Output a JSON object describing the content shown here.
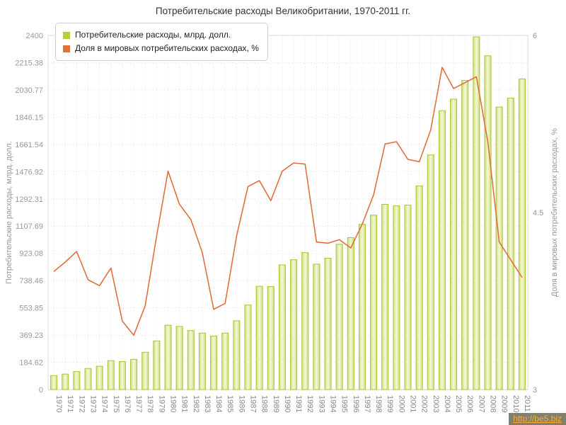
{
  "title": "Потребительские расходы Великобритании, 1970-2011 гг.",
  "watermark": "http://be5.biz",
  "colors": {
    "bar_stroke": "#a9c437",
    "bar_edge": "#cfe078",
    "bar_center": "#f3f8da",
    "bar_legend": "#b4d235",
    "line": "#e0713c",
    "grid": "#e2e2e2",
    "plot_border": "#dddddd",
    "axis_line": "#cccccc",
    "axis_text": "#999999",
    "category_text": "#888888"
  },
  "chart_data": {
    "type": "bar",
    "note": "combo chart: bars on left axis + line on right axis",
    "grid": true,
    "legend_position": "top-left",
    "categories": [
      "1970",
      "1971",
      "1972",
      "1973",
      "1974",
      "1975",
      "1976",
      "1977",
      "1978",
      "1979",
      "1980",
      "1981",
      "1982",
      "1983",
      "1984",
      "1985",
      "1986",
      "1987",
      "1988",
      "1989",
      "1990",
      "1991",
      "1992",
      "1993",
      "1994",
      "1995",
      "1996",
      "1997",
      "1998",
      "1999",
      "2000",
      "2001",
      "2002",
      "2003",
      "2004",
      "2005",
      "2006",
      "2007",
      "2008",
      "2009",
      "2010",
      "2011"
    ],
    "series": [
      {
        "name": "Потребительские расходы, млрд. долл.",
        "type": "bar",
        "axis": "left",
        "values": [
          95,
          105,
          122,
          143,
          158,
          196,
          190,
          205,
          253,
          330,
          436,
          428,
          400,
          383,
          362,
          383,
          466,
          573,
          700,
          698,
          845,
          880,
          928,
          850,
          890,
          985,
          1030,
          1120,
          1182,
          1255,
          1245,
          1250,
          1380,
          1590,
          1890,
          1968,
          2095,
          2390,
          2262,
          1915,
          1975,
          2105
        ]
      },
      {
        "name": "Доля в мировых потребительских расходах, %",
        "type": "line",
        "axis": "right",
        "values": [
          4.0,
          4.08,
          4.17,
          3.93,
          3.88,
          4.03,
          3.58,
          3.46,
          3.71,
          4.3,
          4.85,
          4.57,
          4.44,
          4.16,
          3.68,
          3.73,
          4.3,
          4.72,
          4.77,
          4.6,
          4.85,
          4.92,
          4.91,
          4.25,
          4.24,
          4.27,
          4.2,
          4.4,
          4.65,
          5.08,
          5.1,
          4.95,
          4.93,
          5.2,
          5.73,
          5.55,
          5.6,
          5.65,
          5.1,
          4.25,
          4.1,
          3.95
        ]
      }
    ],
    "left_axis": {
      "label": "Потребительские расходы, млрд. долл.",
      "min": 0,
      "max": 2400,
      "ticks": [
        "0",
        "184.62",
        "369.23",
        "553.85",
        "738.46",
        "923.08",
        "1107.69",
        "1292.31",
        "1476.92",
        "1661.54",
        "1846.15",
        "2030.77",
        "2215.38",
        "2400"
      ]
    },
    "right_axis": {
      "label": "Доля в мировых потребительских расходах, %",
      "min": 3,
      "max": 6,
      "ticks": [
        "3",
        "4.5",
        "6"
      ]
    }
  }
}
